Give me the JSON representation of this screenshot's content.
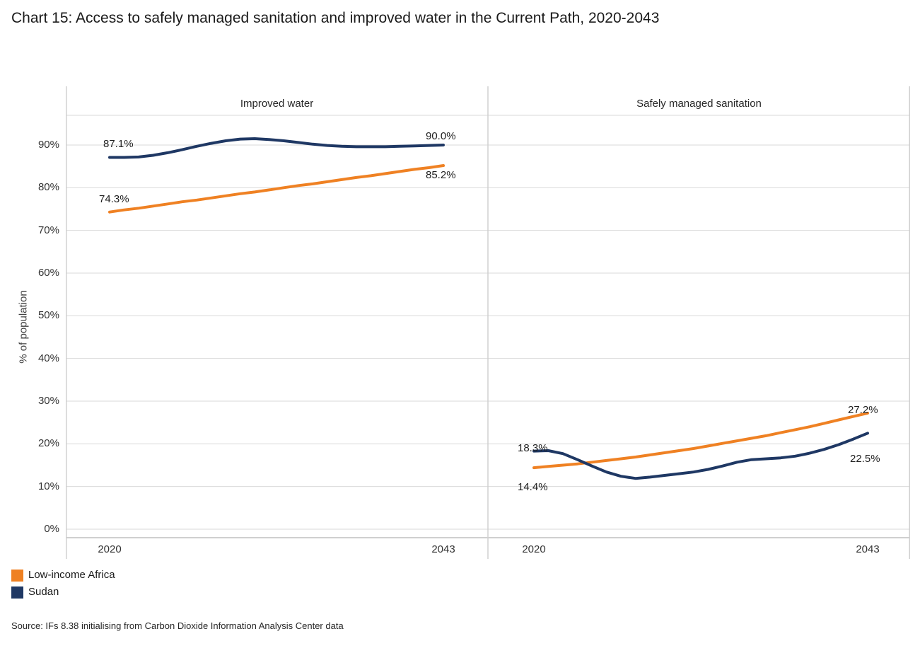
{
  "title": "Chart 15: Access to safely managed sanitation and improved water in the Current Path, 2020-2043",
  "source": "Source: IFs 8.38 initialising from Carbon Dioxide Information Analysis Center data",
  "y_axis": {
    "label": "% of population",
    "ticks": [
      "0%",
      "10%",
      "20%",
      "30%",
      "40%",
      "50%",
      "60%",
      "70%",
      "80%",
      "90%"
    ]
  },
  "legend": {
    "items": [
      {
        "label": "Low-income Africa",
        "color": "#EF8123"
      },
      {
        "label": "Sudan",
        "color": "#1F3864"
      }
    ]
  },
  "colors": {
    "gridline": "#D9D9D9",
    "axis_line": "#BFBFBF",
    "panel_border": "#D0D0D0"
  },
  "chart_data": [
    {
      "type": "line",
      "title": "Improved water",
      "x": [
        2020,
        2021,
        2022,
        2023,
        2024,
        2025,
        2026,
        2027,
        2028,
        2029,
        2030,
        2031,
        2032,
        2033,
        2034,
        2035,
        2036,
        2037,
        2038,
        2039,
        2040,
        2041,
        2042,
        2043
      ],
      "x_tick_labels": [
        "2020",
        "2043"
      ],
      "ylabel": "% of population",
      "ylim": [
        0,
        97
      ],
      "grid": true,
      "legend_position": "bottom-left",
      "series": [
        {
          "name": "Low-income Africa",
          "color": "#EF8123",
          "values": [
            74.3,
            74.8,
            75.2,
            75.7,
            76.2,
            76.7,
            77.1,
            77.6,
            78.1,
            78.6,
            79.0,
            79.5,
            80.0,
            80.5,
            80.9,
            81.4,
            81.9,
            82.4,
            82.8,
            83.3,
            83.8,
            84.3,
            84.7,
            85.2
          ]
        },
        {
          "name": "Sudan",
          "color": "#1F3864",
          "values": [
            87.1,
            87.1,
            87.2,
            87.6,
            88.2,
            88.9,
            89.7,
            90.4,
            91.0,
            91.4,
            91.5,
            91.3,
            91.0,
            90.6,
            90.2,
            89.9,
            89.7,
            89.6,
            89.6,
            89.6,
            89.7,
            89.8,
            89.9,
            90.0
          ]
        }
      ],
      "annotations": [
        {
          "series": "Sudan",
          "year": 2020,
          "value": 87.1,
          "text": "87.1%"
        },
        {
          "series": "Sudan",
          "year": 2043,
          "value": 90.0,
          "text": "90.0%"
        },
        {
          "series": "Low-income Africa",
          "year": 2020,
          "value": 74.3,
          "text": "74.3%"
        },
        {
          "series": "Low-income Africa",
          "year": 2043,
          "value": 85.2,
          "text": "85.2%"
        }
      ]
    },
    {
      "type": "line",
      "title": "Safely managed sanitation",
      "x": [
        2020,
        2021,
        2022,
        2023,
        2024,
        2025,
        2026,
        2027,
        2028,
        2029,
        2030,
        2031,
        2032,
        2033,
        2034,
        2035,
        2036,
        2037,
        2038,
        2039,
        2040,
        2041,
        2042,
        2043
      ],
      "x_tick_labels": [
        "2020",
        "2043"
      ],
      "ylabel": "% of population",
      "ylim": [
        0,
        97
      ],
      "grid": true,
      "series": [
        {
          "name": "Low-income Africa",
          "color": "#EF8123",
          "values": [
            14.4,
            14.7,
            15.0,
            15.3,
            15.7,
            16.1,
            16.5,
            16.9,
            17.4,
            17.9,
            18.4,
            18.9,
            19.5,
            20.1,
            20.7,
            21.3,
            21.9,
            22.6,
            23.3,
            24.0,
            24.8,
            25.6,
            26.4,
            27.2
          ]
        },
        {
          "name": "Sudan",
          "color": "#1F3864",
          "values": [
            18.3,
            18.4,
            17.7,
            16.3,
            14.8,
            13.4,
            12.4,
            11.9,
            12.2,
            12.6,
            13.0,
            13.4,
            14.0,
            14.8,
            15.7,
            16.3,
            16.5,
            16.7,
            17.1,
            17.8,
            18.7,
            19.8,
            21.1,
            22.5
          ]
        }
      ],
      "annotations": [
        {
          "series": "Sudan",
          "year": 2020,
          "value": 18.3,
          "text": "18.3%"
        },
        {
          "series": "Sudan",
          "year": 2043,
          "value": 22.5,
          "text": "22.5%"
        },
        {
          "series": "Low-income Africa",
          "year": 2020,
          "value": 14.4,
          "text": "14.4%"
        },
        {
          "series": "Low-income Africa",
          "year": 2043,
          "value": 27.2,
          "text": "27.2%"
        }
      ]
    }
  ]
}
